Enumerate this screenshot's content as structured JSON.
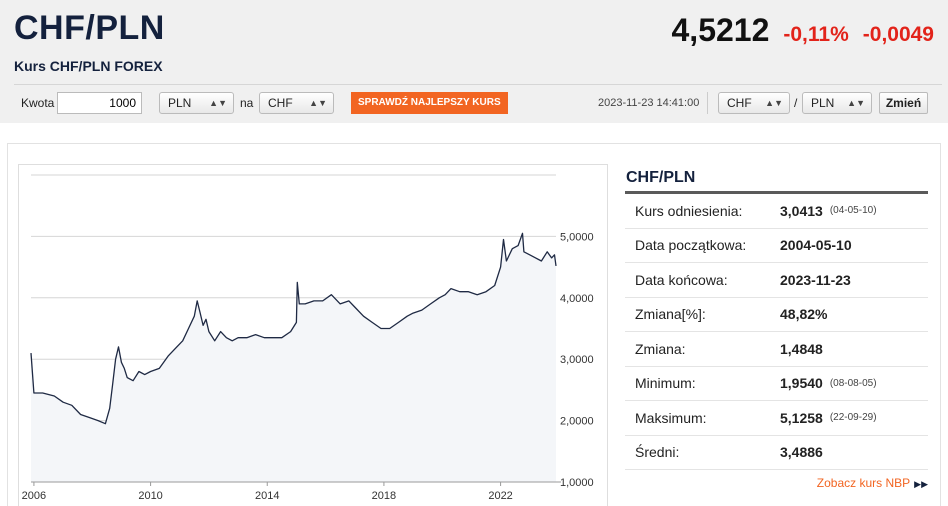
{
  "header": {
    "pair": "CHF/PLN",
    "subtitle": "Kurs CHF/PLN FOREX",
    "rate": "4,5212",
    "change_pct": "-0,11%",
    "change_abs": "-0,0049"
  },
  "toolbar": {
    "amount_label": "Kwota",
    "amount_value": "1000",
    "from_currency": "PLN",
    "na_label": "na",
    "to_currency": "CHF",
    "best_rate_button": "SPRAWDŹ NAJLEPSZY KURS",
    "timestamp": "2023-11-23 14:41:00",
    "pair_base": "CHF",
    "slash": "/",
    "pair_quote": "PLN",
    "change_button": "Zmień"
  },
  "stats": {
    "title": "CHF/PLN",
    "rows": [
      {
        "label": "Kurs odniesienia:",
        "value": "3,0413",
        "date": "(04-05-10)"
      },
      {
        "label": "Data początkowa:",
        "value": "2004-05-10",
        "date": ""
      },
      {
        "label": "Data końcowa:",
        "value": "2023-11-23",
        "date": ""
      },
      {
        "label": "Zmiana[%]:",
        "value": "48,82%",
        "date": ""
      },
      {
        "label": "Zmiana:",
        "value": "1,4848",
        "date": ""
      },
      {
        "label": "Minimum:",
        "value": "1,9540",
        "date": "(08-08-05)"
      },
      {
        "label": "Maksimum:",
        "value": "5,1258",
        "date": "(22-09-29)"
      },
      {
        "label": "Średni:",
        "value": "3,4886",
        "date": ""
      }
    ],
    "nbp_link": "Zobacz kurs NBP"
  },
  "chart_data": {
    "type": "line",
    "title": "",
    "xlabel": "",
    "ylabel": "",
    "x_ticks": [
      "2006",
      "2010",
      "2014",
      "2018",
      "2022"
    ],
    "x_tick_values": [
      2006,
      2010,
      2014,
      2018,
      2022
    ],
    "y_ticks": [
      "1,0000",
      "2,0000",
      "3,0000",
      "4,0000",
      "5,0000"
    ],
    "y_tick_values": [
      1,
      2,
      3,
      4,
      5
    ],
    "xlim": [
      2005.9,
      2023.9
    ],
    "ylim": [
      1.0,
      6.0
    ],
    "grid": true,
    "line_color": "#1f2a44",
    "fill_color": "#f4f6f9",
    "series": [
      {
        "x": [
          2005.9,
          2006.0,
          2006.3,
          2006.7,
          2007.0,
          2007.3,
          2007.6,
          2007.9,
          2008.2,
          2008.45,
          2008.6,
          2008.7,
          2008.8,
          2008.9,
          2009.0,
          2009.1,
          2009.2,
          2009.4,
          2009.6,
          2009.8,
          2010.0,
          2010.3,
          2010.6,
          2010.9,
          2011.1,
          2011.3,
          2011.5,
          2011.6,
          2011.7,
          2011.8,
          2011.9,
          2012.0,
          2012.2,
          2012.4,
          2012.6,
          2012.8,
          2013.0,
          2013.3,
          2013.6,
          2013.9,
          2014.2,
          2014.5,
          2014.8,
          2015.0,
          2015.03,
          2015.1,
          2015.3,
          2015.6,
          2015.9,
          2016.2,
          2016.5,
          2016.8,
          2017.0,
          2017.3,
          2017.6,
          2017.9,
          2018.2,
          2018.5,
          2018.8,
          2019.0,
          2019.3,
          2019.6,
          2019.9,
          2020.1,
          2020.3,
          2020.6,
          2020.9,
          2021.2,
          2021.5,
          2021.8,
          2022.0,
          2022.1,
          2022.2,
          2022.4,
          2022.6,
          2022.75,
          2022.8,
          2023.0,
          2023.2,
          2023.4,
          2023.6,
          2023.75,
          2023.85,
          2023.9
        ],
        "y": [
          3.1,
          2.45,
          2.45,
          2.4,
          2.3,
          2.25,
          2.1,
          2.05,
          2.0,
          1.95,
          2.2,
          2.6,
          3.0,
          3.2,
          2.95,
          2.85,
          2.7,
          2.65,
          2.8,
          2.75,
          2.8,
          2.85,
          3.05,
          3.2,
          3.3,
          3.5,
          3.7,
          3.95,
          3.75,
          3.55,
          3.65,
          3.45,
          3.3,
          3.45,
          3.35,
          3.3,
          3.35,
          3.35,
          3.4,
          3.35,
          3.35,
          3.35,
          3.45,
          3.6,
          4.25,
          3.9,
          3.9,
          3.95,
          3.95,
          4.05,
          3.9,
          3.95,
          3.85,
          3.7,
          3.6,
          3.5,
          3.5,
          3.6,
          3.7,
          3.75,
          3.8,
          3.9,
          4.0,
          4.05,
          4.15,
          4.1,
          4.1,
          4.05,
          4.1,
          4.2,
          4.5,
          4.95,
          4.6,
          4.8,
          4.85,
          5.05,
          4.75,
          4.7,
          4.65,
          4.6,
          4.75,
          4.65,
          4.7,
          4.52
        ]
      }
    ]
  }
}
